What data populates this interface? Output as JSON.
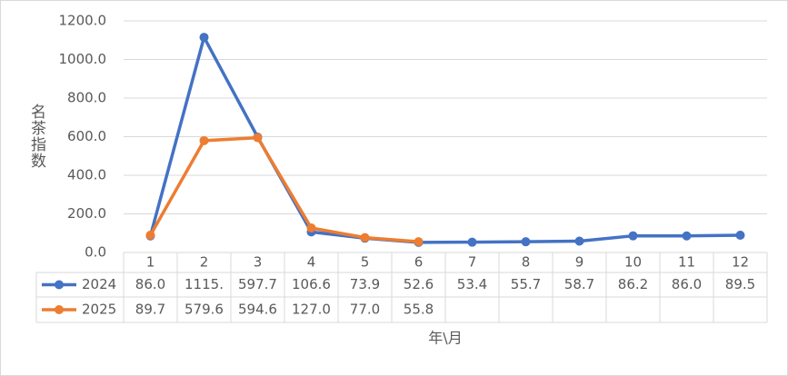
{
  "chart_data": {
    "type": "line",
    "x_label": "年\\月",
    "y_label": "名茶指数",
    "categories": [
      "1",
      "2",
      "3",
      "4",
      "5",
      "6",
      "7",
      "8",
      "9",
      "10",
      "11",
      "12"
    ],
    "series": [
      {
        "name": "2024",
        "color": "#4472c4",
        "values": [
          86.0,
          1115,
          597.7,
          106.6,
          73.9,
          52.6,
          53.4,
          55.7,
          58.7,
          86.2,
          86.0,
          89.5
        ],
        "value_labels": [
          "86.0",
          "1115.",
          "597.7",
          "106.6",
          "73.9",
          "52.6",
          "53.4",
          "55.7",
          "58.7",
          "86.2",
          "86.0",
          "89.5"
        ]
      },
      {
        "name": "2025",
        "color": "#ed7d31",
        "values": [
          89.7,
          579.6,
          594.6,
          127.0,
          77.0,
          55.8,
          null,
          null,
          null,
          null,
          null,
          null
        ],
        "value_labels": [
          "89.7",
          "579.6",
          "594.6",
          "127.0",
          "77.0",
          "55.8",
          null,
          null,
          null,
          null,
          null,
          null
        ]
      }
    ],
    "ylim": [
      0,
      1200
    ],
    "yticks": [
      {
        "value": 0,
        "label": "0.0"
      },
      {
        "value": 200,
        "label": "200.0"
      },
      {
        "value": 400,
        "label": "400.0"
      },
      {
        "value": 600,
        "label": "600.0"
      },
      {
        "value": 800,
        "label": "800.0"
      },
      {
        "value": 1000,
        "label": "1000.0"
      },
      {
        "value": 1200,
        "label": "1200.0"
      }
    ],
    "grid": true
  }
}
